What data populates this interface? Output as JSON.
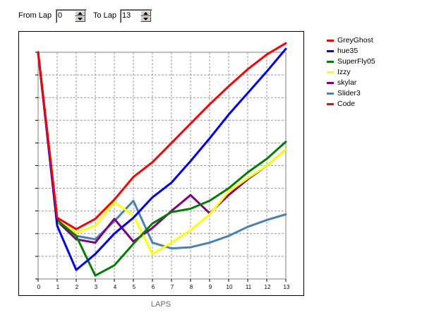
{
  "controls": {
    "from_label": "From Lap",
    "from_value": "0",
    "to_label": "To Lap",
    "to_value": "13"
  },
  "chart_data": {
    "type": "line",
    "xlabel": "LAPS",
    "x": [
      0,
      1,
      2,
      3,
      4,
      5,
      6,
      7,
      8,
      9,
      10,
      11,
      12,
      13
    ],
    "grid": true,
    "legend_position": "right",
    "series": [
      {
        "name": "GreyGhost",
        "color": "#ff0000",
        "values": [
          0,
          14.6,
          15.6,
          14.7,
          13,
          11,
          9.7,
          8.0,
          6.3,
          4.6,
          3.0,
          1.5,
          0.2,
          -0.8
        ]
      },
      {
        "name": "hue35",
        "color": "#0000ff",
        "values": [
          0,
          15.3,
          19.2,
          17.8,
          16,
          14.6,
          12.8,
          11.5,
          9.6,
          7.6,
          5.5,
          3.6,
          1.7,
          -0.3
        ]
      },
      {
        "name": "SuperFly05",
        "color": "#008000",
        "values": [
          0,
          14.8,
          16.2,
          19.7,
          18.8,
          16.9,
          15.1,
          14.1,
          13.8,
          13.1,
          12.0,
          10.6,
          9.4,
          7.9
        ]
      },
      {
        "name": "Izzy",
        "color": "#ffff00",
        "values": [
          0,
          14.9,
          15.9,
          15.3,
          13.2,
          14.4,
          17.8,
          16.8,
          15.7,
          14.3,
          12.3,
          11.1,
          10.0,
          8.6
        ]
      },
      {
        "name": "skylar",
        "color": "#800080",
        "values": [
          0,
          14.9,
          16.5,
          16.8,
          14.7,
          16.7,
          15.5,
          14.0,
          12.6,
          14.2,
          12.6,
          11.2,
          10.0,
          8.6
        ]
      },
      {
        "name": "Slider3",
        "color": "#4682b4",
        "values": [
          0,
          14.8,
          16.2,
          16.5,
          14.9,
          13.1,
          16.8,
          17.3,
          17.2,
          16.8,
          16.2,
          15.4,
          14.8,
          14.3
        ]
      },
      {
        "name": "Code",
        "color": "#a52a2a",
        "values": [
          0,
          null,
          null,
          null,
          null,
          null,
          null,
          null,
          null,
          null,
          null,
          null,
          null,
          null
        ]
      }
    ]
  }
}
